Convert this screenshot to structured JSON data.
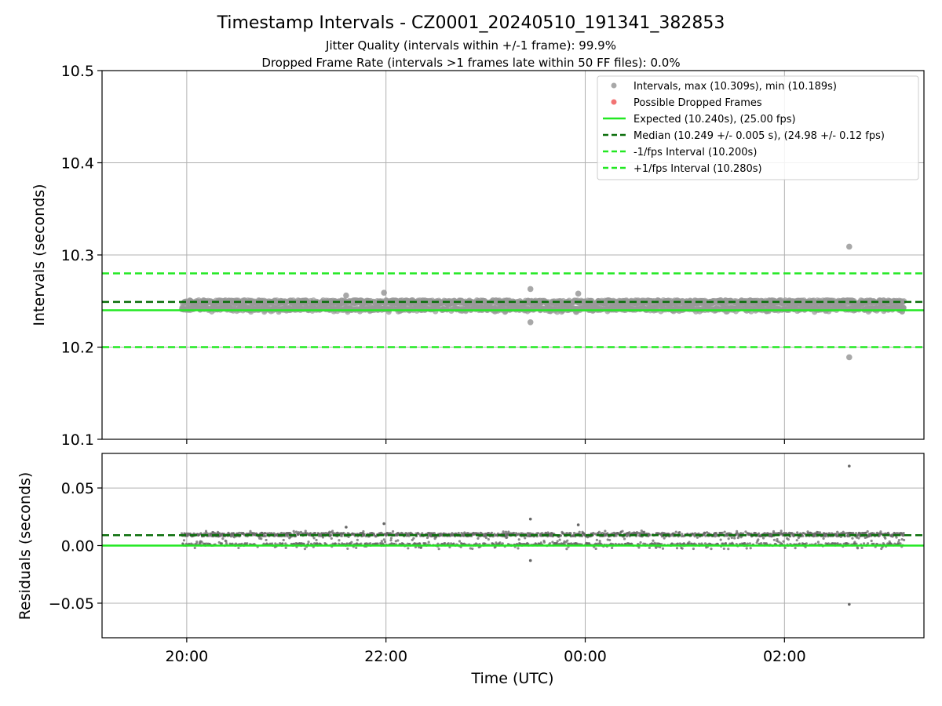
{
  "chart_data": {
    "type": "scatter",
    "title": "Timestamp Intervals - CZ0001_20240510_191341_382853",
    "subtitle_lines": [
      "Jitter Quality (intervals within +/-1 frame): 99.9%",
      "Dropped Frame Rate (intervals >1 frames late within 50 FF files): 0.0%"
    ],
    "xlabel": "Time (UTC)",
    "x_range_hours": [
      19.15,
      27.4
    ],
    "x_tick_hours": [
      20,
      22,
      24,
      26
    ],
    "x_tick_labels": [
      "20:00",
      "22:00",
      "00:00",
      "02:00"
    ],
    "data_x_range_hours": [
      19.95,
      27.2
    ],
    "grid": true,
    "top_panel": {
      "ylabel": "Intervals (seconds)",
      "ylim": [
        10.1,
        10.5
      ],
      "y_ticks": [
        10.1,
        10.2,
        10.3,
        10.4,
        10.5
      ],
      "y_tick_labels": [
        "10.1",
        "10.2",
        "10.3",
        "10.4",
        "10.5"
      ],
      "max_interval": 10.309,
      "min_interval": 10.189,
      "band_low": 10.24,
      "band_high": 10.251,
      "outliers": [
        {
          "x": 26.65,
          "y": 10.309
        },
        {
          "x": 26.65,
          "y": 10.189
        },
        {
          "x": 23.45,
          "y": 10.263
        },
        {
          "x": 23.45,
          "y": 10.227
        },
        {
          "x": 23.93,
          "y": 10.258
        },
        {
          "x": 21.6,
          "y": 10.256
        },
        {
          "x": 21.98,
          "y": 10.259
        }
      ],
      "lines": {
        "expected": 10.24,
        "median": 10.249,
        "minus_interval": 10.2,
        "plus_interval": 10.28
      },
      "legend": [
        {
          "label": "Intervals, max (10.309s), min (10.189s)",
          "kind": "dot",
          "color": "#999999"
        },
        {
          "label": "Possible Dropped Frames",
          "kind": "dot",
          "color": "#f05a5a"
        },
        {
          "label": "Expected (10.240s), (25.00 fps)",
          "kind": "solid",
          "color": "#22e822"
        },
        {
          "label": "Median (10.249 +/- 0.005 s), (24.98 +/- 0.12 fps)",
          "kind": "dashed",
          "color": "#0a6e0a"
        },
        {
          "label": "-1/fps Interval (10.200s)",
          "kind": "dashed",
          "color": "#22e822"
        },
        {
          "label": "+1/fps Interval (10.280s)",
          "kind": "dashed",
          "color": "#22e822"
        }
      ],
      "legend_position": "top-right"
    },
    "bottom_panel": {
      "ylabel": "Residuals (seconds)",
      "ylim": [
        -0.08,
        0.08
      ],
      "y_ticks": [
        -0.05,
        0.0,
        0.05
      ],
      "y_tick_labels": [
        "−0.05",
        "0.00",
        "0.05"
      ],
      "lines": {
        "zero": 0.0,
        "median_residual": 0.009
      },
      "band_low": 0.0,
      "band_high": 0.011,
      "outliers": [
        {
          "x": 26.65,
          "y": 0.069
        },
        {
          "x": 26.65,
          "y": -0.051
        },
        {
          "x": 23.45,
          "y": 0.023
        },
        {
          "x": 23.45,
          "y": -0.013
        },
        {
          "x": 23.93,
          "y": 0.018
        },
        {
          "x": 21.6,
          "y": 0.016
        },
        {
          "x": 21.98,
          "y": 0.019
        }
      ]
    },
    "colors": {
      "points": "#999999",
      "residual_points": "#666666",
      "expected": "#22e822",
      "median": "#0a6e0a",
      "interval_bounds": "#22e822"
    }
  }
}
